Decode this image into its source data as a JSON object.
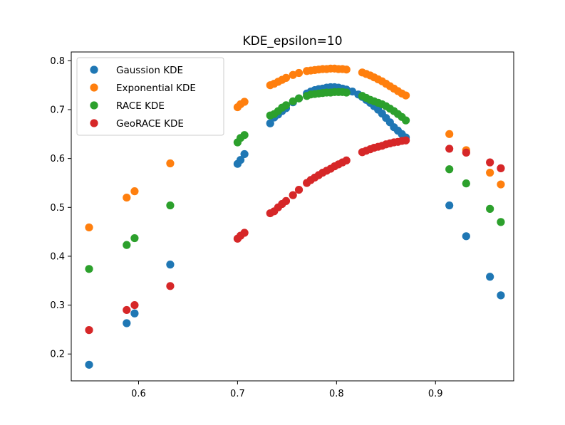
{
  "chart_data": {
    "type": "scatter",
    "title": "KDE_epsilon=10",
    "xlabel": "",
    "ylabel": "",
    "xlim": [
      0.532,
      0.979
    ],
    "ylim": [
      0.145,
      0.818
    ],
    "xticks": [
      0.6,
      0.7,
      0.8,
      0.9
    ],
    "xtick_labels": [
      "0.6",
      "0.7",
      "0.8",
      "0.9"
    ],
    "yticks": [
      0.2,
      0.3,
      0.4,
      0.5,
      0.6,
      0.7,
      0.8
    ],
    "ytick_labels": [
      "0.2",
      "0.3",
      "0.4",
      "0.5",
      "0.6",
      "0.7",
      "0.8"
    ],
    "grid": false,
    "legend_position": "upper-left",
    "series": [
      {
        "name": "Gaussion KDE",
        "color": "#1f77b4",
        "x": [
          0.55,
          0.588,
          0.596,
          0.632,
          0.7,
          0.703,
          0.707,
          0.733,
          0.737,
          0.741,
          0.745,
          0.749,
          0.756,
          0.762,
          0.77,
          0.774,
          0.778,
          0.782,
          0.786,
          0.79,
          0.794,
          0.798,
          0.802,
          0.806,
          0.81,
          0.816,
          0.822,
          0.826,
          0.83,
          0.834,
          0.838,
          0.842,
          0.846,
          0.85,
          0.854,
          0.858,
          0.862,
          0.866,
          0.87,
          0.914,
          0.931,
          0.955,
          0.966
        ],
        "y": [
          0.178,
          0.263,
          0.283,
          0.383,
          0.589,
          0.597,
          0.609,
          0.672,
          0.684,
          0.69,
          0.697,
          0.703,
          0.715,
          0.723,
          0.733,
          0.737,
          0.74,
          0.742,
          0.743,
          0.745,
          0.746,
          0.746,
          0.745,
          0.743,
          0.741,
          0.737,
          0.731,
          0.726,
          0.72,
          0.714,
          0.707,
          0.7,
          0.692,
          0.683,
          0.674,
          0.664,
          0.657,
          0.65,
          0.643,
          0.504,
          0.441,
          0.358,
          0.32
        ]
      },
      {
        "name": "Exponential KDE",
        "color": "#ff7f0e",
        "x": [
          0.55,
          0.588,
          0.596,
          0.632,
          0.7,
          0.703,
          0.707,
          0.733,
          0.737,
          0.741,
          0.745,
          0.749,
          0.756,
          0.762,
          0.77,
          0.774,
          0.778,
          0.782,
          0.786,
          0.79,
          0.794,
          0.798,
          0.802,
          0.806,
          0.81,
          0.826,
          0.83,
          0.834,
          0.838,
          0.842,
          0.846,
          0.85,
          0.854,
          0.858,
          0.862,
          0.866,
          0.87,
          0.914,
          0.931,
          0.955,
          0.966
        ],
        "y": [
          0.459,
          0.52,
          0.533,
          0.59,
          0.705,
          0.711,
          0.716,
          0.75,
          0.753,
          0.757,
          0.761,
          0.765,
          0.771,
          0.775,
          0.779,
          0.78,
          0.781,
          0.782,
          0.783,
          0.783,
          0.784,
          0.784,
          0.783,
          0.783,
          0.782,
          0.776,
          0.773,
          0.77,
          0.766,
          0.762,
          0.758,
          0.753,
          0.748,
          0.743,
          0.738,
          0.733,
          0.729,
          0.65,
          0.617,
          0.571,
          0.547
        ]
      },
      {
        "name": "RACE KDE",
        "color": "#2ca02c",
        "x": [
          0.55,
          0.588,
          0.596,
          0.632,
          0.7,
          0.703,
          0.707,
          0.733,
          0.737,
          0.741,
          0.745,
          0.749,
          0.756,
          0.762,
          0.77,
          0.774,
          0.778,
          0.782,
          0.786,
          0.79,
          0.794,
          0.798,
          0.802,
          0.806,
          0.81,
          0.826,
          0.83,
          0.834,
          0.838,
          0.842,
          0.846,
          0.85,
          0.854,
          0.858,
          0.862,
          0.866,
          0.87,
          0.914,
          0.931,
          0.955,
          0.966
        ],
        "y": [
          0.374,
          0.423,
          0.437,
          0.504,
          0.633,
          0.642,
          0.648,
          0.688,
          0.691,
          0.697,
          0.704,
          0.709,
          0.717,
          0.723,
          0.728,
          0.731,
          0.732,
          0.733,
          0.734,
          0.735,
          0.735,
          0.736,
          0.736,
          0.736,
          0.735,
          0.728,
          0.724,
          0.72,
          0.717,
          0.714,
          0.711,
          0.707,
          0.702,
          0.697,
          0.691,
          0.685,
          0.678,
          0.578,
          0.549,
          0.497,
          0.47
        ]
      },
      {
        "name": "GeoRACE KDE",
        "color": "#d62728",
        "x": [
          0.55,
          0.588,
          0.596,
          0.632,
          0.7,
          0.703,
          0.707,
          0.733,
          0.737,
          0.741,
          0.745,
          0.749,
          0.756,
          0.762,
          0.77,
          0.774,
          0.778,
          0.782,
          0.786,
          0.79,
          0.794,
          0.798,
          0.802,
          0.806,
          0.81,
          0.826,
          0.83,
          0.834,
          0.838,
          0.842,
          0.846,
          0.85,
          0.854,
          0.858,
          0.862,
          0.866,
          0.87,
          0.914,
          0.931,
          0.955,
          0.966
        ],
        "y": [
          0.249,
          0.29,
          0.3,
          0.339,
          0.436,
          0.442,
          0.448,
          0.488,
          0.492,
          0.5,
          0.507,
          0.513,
          0.525,
          0.536,
          0.55,
          0.556,
          0.561,
          0.566,
          0.571,
          0.575,
          0.579,
          0.584,
          0.588,
          0.592,
          0.596,
          0.613,
          0.616,
          0.619,
          0.622,
          0.624,
          0.626,
          0.629,
          0.631,
          0.633,
          0.634,
          0.636,
          0.637,
          0.62,
          0.612,
          0.592,
          0.58
        ]
      }
    ]
  }
}
